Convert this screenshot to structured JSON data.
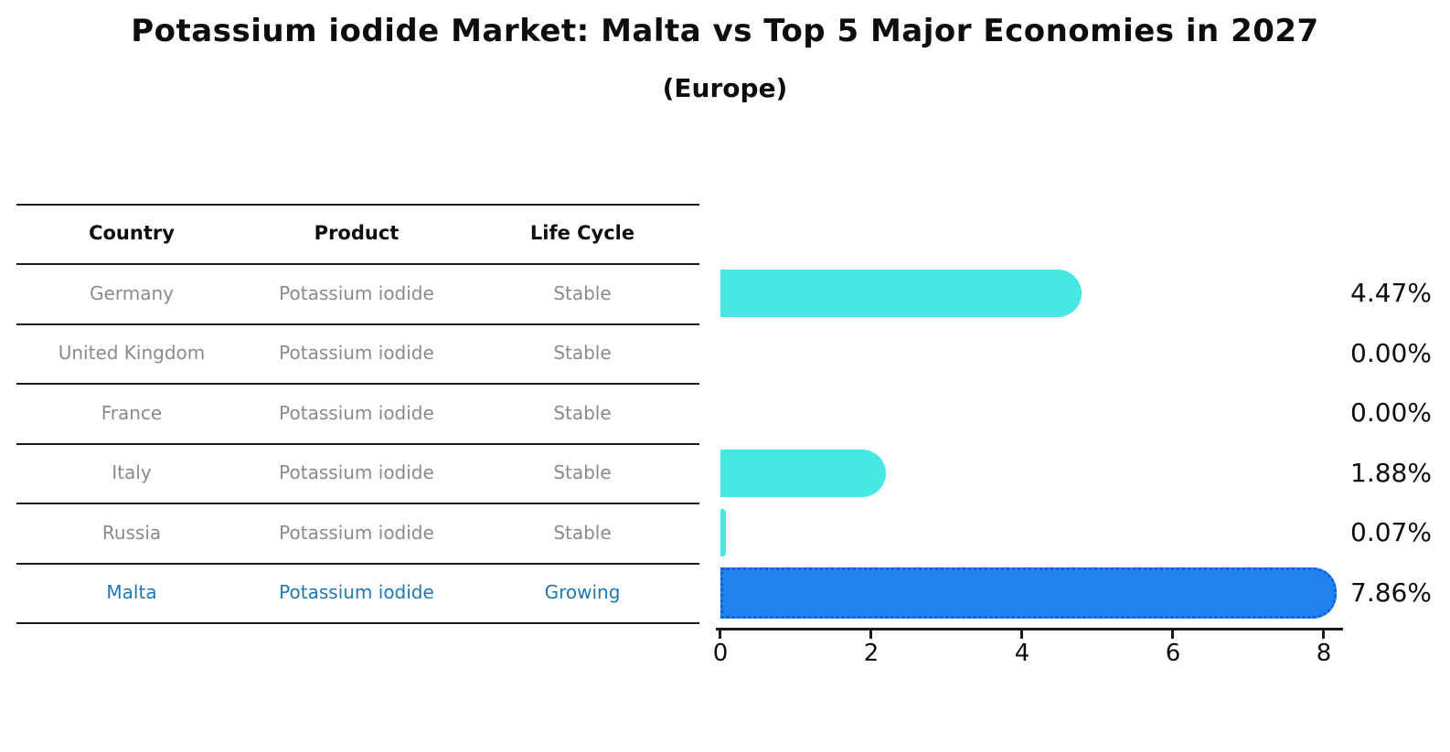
{
  "title": "Potassium iodide Market: Malta vs Top 5 Major Economies in 2027",
  "subtitle": "(Europe)",
  "table": {
    "headers": [
      "Country",
      "Product",
      "Life Cycle"
    ],
    "rows": [
      {
        "country": "Germany",
        "product": "Potassium iodide",
        "life_cycle": "Stable",
        "highlight": false
      },
      {
        "country": "United Kingdom",
        "product": "Potassium iodide",
        "life_cycle": "Stable",
        "highlight": false
      },
      {
        "country": "France",
        "product": "Potassium iodide",
        "life_cycle": "Stable",
        "highlight": false
      },
      {
        "country": "Italy",
        "product": "Potassium iodide",
        "life_cycle": "Stable",
        "highlight": false
      },
      {
        "country": "Russia",
        "product": "Potassium iodide",
        "life_cycle": "Stable",
        "highlight": false
      },
      {
        "country": "Malta",
        "product": "Potassium iodide",
        "life_cycle": "Growing",
        "highlight": true
      }
    ]
  },
  "chart_data": {
    "type": "bar",
    "orientation": "horizontal",
    "title": "Potassium iodide Market: Malta vs Top 5 Major Economies in 2027",
    "subtitle": "(Europe)",
    "categories": [
      "Germany",
      "United Kingdom",
      "France",
      "Italy",
      "Russia",
      "Malta"
    ],
    "values": [
      4.47,
      0.0,
      0.0,
      1.88,
      0.07,
      7.86
    ],
    "value_labels": [
      "4.47%",
      "0.00%",
      "0.00%",
      "1.88%",
      "0.07%",
      "7.86%"
    ],
    "unit": "%",
    "xticks": [
      "0",
      "2",
      "4",
      "6",
      "8"
    ],
    "xlim": [
      0,
      8.3
    ],
    "grid": false,
    "legend": false,
    "highlight_index": 5,
    "colors": {
      "bar": "#47E8E1",
      "highlight_bar": "#1F82EE",
      "highlight_border": "#1060D8",
      "row_text": "#8a8a8a",
      "highlight_text": "#1f77b4",
      "axis": "#1a1a1a",
      "label_text": "#0d0d0d"
    }
  }
}
